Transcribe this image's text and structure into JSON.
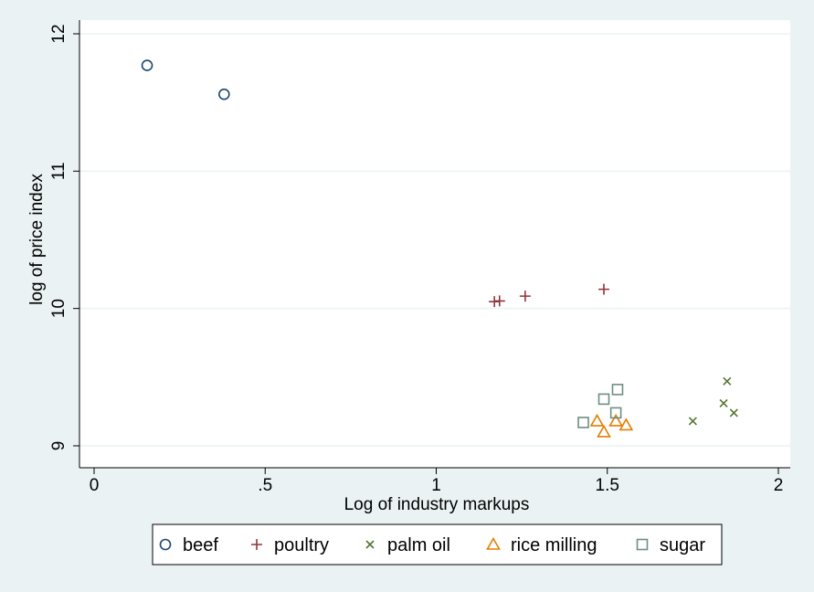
{
  "chart_data": {
    "type": "scatter",
    "title": "",
    "xlabel": "Log of industry markups",
    "ylabel": "log of price index",
    "xlim": [
      0,
      2
    ],
    "ylim": [
      9,
      12
    ],
    "xticks": [
      {
        "value": 0,
        "label": "0"
      },
      {
        "value": 0.5,
        "label": ".5"
      },
      {
        "value": 1,
        "label": "1"
      },
      {
        "value": 1.5,
        "label": "1.5"
      },
      {
        "value": 2,
        "label": "2"
      }
    ],
    "yticks": [
      {
        "value": 9,
        "label": "9"
      },
      {
        "value": 10,
        "label": "10"
      },
      {
        "value": 11,
        "label": "11"
      },
      {
        "value": 12,
        "label": "12"
      }
    ],
    "grid": "horizontal",
    "legend_position": "bottom",
    "series": [
      {
        "name": "beef",
        "marker": "circle",
        "color": "#1a476f",
        "points": [
          [
            0.155,
            11.77
          ],
          [
            0.38,
            11.56
          ]
        ]
      },
      {
        "name": "poultry",
        "marker": "plus",
        "color": "#90353b",
        "points": [
          [
            1.17,
            10.05
          ],
          [
            1.185,
            10.055
          ],
          [
            1.26,
            10.09
          ],
          [
            1.49,
            10.14
          ]
        ]
      },
      {
        "name": "palm oil",
        "marker": "x",
        "color": "#55752f",
        "points": [
          [
            1.75,
            9.18
          ],
          [
            1.84,
            9.31
          ],
          [
            1.85,
            9.47
          ],
          [
            1.87,
            9.24
          ]
        ]
      },
      {
        "name": "rice milling",
        "marker": "triangle",
        "color": "#e37e00",
        "points": [
          [
            1.47,
            9.18
          ],
          [
            1.49,
            9.1
          ],
          [
            1.525,
            9.18
          ],
          [
            1.555,
            9.15
          ]
        ]
      },
      {
        "name": "sugar",
        "marker": "square",
        "color": "#6e8e84",
        "points": [
          [
            1.43,
            9.17
          ],
          [
            1.49,
            9.34
          ],
          [
            1.525,
            9.24
          ],
          [
            1.53,
            9.41
          ]
        ]
      }
    ]
  },
  "colors": {
    "page_background": "#eaf2f3",
    "plot_background": "#ffffff",
    "gridline": "#eaf2f3"
  }
}
